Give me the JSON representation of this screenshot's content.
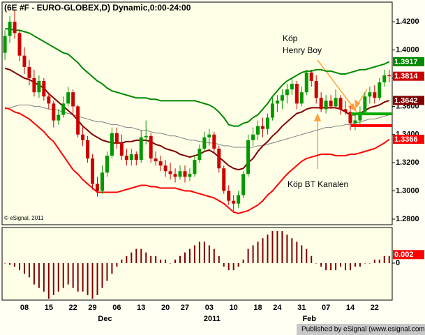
{
  "chart_data": [
    {
      "type": "candlestick",
      "title": "(6E #F - EURO-GLOBEX,D) Dynamic,0:00-24:00",
      "copyright": "© eSignal, 2011",
      "annotations": [
        "Köp",
        "Henry Boy",
        "Köp BT Kanalen"
      ],
      "ylim": [
        1.276,
        1.433
      ],
      "yticks": [
        {
          "value": 1.28,
          "label": "1.2800"
        },
        {
          "value": 1.3,
          "label": "1.3000"
        },
        {
          "value": 1.32,
          "label": "1.3200"
        },
        {
          "value": 1.34,
          "label": "1.3400"
        },
        {
          "value": 1.36,
          "label": "1.3600"
        },
        {
          "value": 1.38,
          "label": "1.3800"
        },
        {
          "value": 1.4,
          "label": "1.4000"
        },
        {
          "value": 1.42,
          "label": "1.4200"
        }
      ],
      "categories": [
        null,
        null,
        null,
        null,
        "08",
        null,
        null,
        null,
        null,
        "15",
        null,
        null,
        null,
        null,
        "22",
        null,
        null,
        null,
        "29",
        null,
        null,
        null,
        null,
        "06",
        null,
        null,
        null,
        null,
        "13",
        null,
        null,
        null,
        null,
        "20",
        null,
        null,
        null,
        "27",
        null,
        null,
        null,
        null,
        "03",
        null,
        null,
        null,
        null,
        "10",
        null,
        null,
        null,
        null,
        "18",
        null,
        null,
        null,
        "24",
        null,
        null,
        null,
        null,
        "31",
        null,
        null,
        null,
        null,
        "07",
        null,
        null,
        null,
        null,
        "14",
        null,
        null,
        null,
        null,
        "22",
        null,
        null,
        null
      ],
      "month_labels": [
        null,
        null,
        null,
        null,
        null,
        null,
        null,
        null,
        null,
        null,
        null,
        null,
        null,
        null,
        null,
        null,
        null,
        null,
        null,
        null,
        "Dec",
        null,
        null,
        null,
        null,
        null,
        null,
        null,
        null,
        null,
        null,
        null,
        null,
        null,
        null,
        null,
        null,
        null,
        null,
        null,
        null,
        null,
        "2011",
        null,
        null,
        null,
        null,
        null,
        null,
        null,
        null,
        null,
        null,
        null,
        null,
        null,
        null,
        null,
        null,
        null,
        null,
        null,
        "Feb",
        null,
        null,
        null,
        null,
        null,
        null,
        null,
        null,
        null,
        null,
        null,
        null,
        null,
        null,
        null,
        null,
        null
      ],
      "up_color": "#009900",
      "down_color": "#cc0000",
      "open": [
        1.398,
        1.41,
        1.42,
        1.412,
        1.396,
        1.388,
        1.38,
        1.37,
        1.378,
        1.367,
        1.362,
        1.35,
        1.354,
        1.362,
        1.37,
        1.36,
        1.34,
        1.336,
        1.323,
        1.305,
        1.3,
        1.313,
        1.325,
        1.341,
        1.334,
        1.325,
        1.322,
        1.326,
        1.322,
        1.338,
        1.339,
        1.323,
        1.321,
        1.318,
        1.314,
        1.312,
        1.31,
        1.314,
        1.31,
        1.312,
        1.322,
        1.33,
        1.338,
        1.34,
        1.33,
        1.316,
        1.3,
        1.293,
        1.291,
        1.297,
        1.312,
        1.336,
        1.34,
        1.346,
        1.344,
        1.352,
        1.362,
        1.364,
        1.368,
        1.372,
        1.376,
        1.362,
        1.37,
        1.384,
        1.378,
        1.366,
        1.358,
        1.364,
        1.36,
        1.366,
        1.358,
        1.356,
        1.348,
        1.35,
        1.356,
        1.367,
        1.37,
        1.366,
        1.377,
        1.382
      ],
      "high": [
        1.414,
        1.424,
        1.428,
        1.414,
        1.402,
        1.393,
        1.386,
        1.382,
        1.38,
        1.37,
        1.364,
        1.358,
        1.367,
        1.374,
        1.372,
        1.361,
        1.346,
        1.339,
        1.326,
        1.31,
        1.318,
        1.328,
        1.345,
        1.345,
        1.34,
        1.33,
        1.33,
        1.328,
        1.343,
        1.35,
        1.341,
        1.328,
        1.325,
        1.322,
        1.32,
        1.316,
        1.318,
        1.318,
        1.316,
        1.325,
        1.333,
        1.342,
        1.344,
        1.342,
        1.332,
        1.318,
        1.304,
        1.297,
        1.3,
        1.314,
        1.34,
        1.345,
        1.35,
        1.352,
        1.355,
        1.366,
        1.368,
        1.372,
        1.376,
        1.38,
        1.378,
        1.374,
        1.386,
        1.386,
        1.382,
        1.37,
        1.368,
        1.368,
        1.372,
        1.368,
        1.364,
        1.36,
        1.354,
        1.36,
        1.37,
        1.374,
        1.375,
        1.38,
        1.386,
        1.386
      ],
      "low": [
        1.393,
        1.405,
        1.408,
        1.392,
        1.383,
        1.375,
        1.367,
        1.366,
        1.364,
        1.358,
        1.345,
        1.347,
        1.352,
        1.36,
        1.355,
        1.338,
        1.332,
        1.32,
        1.301,
        1.296,
        1.298,
        1.31,
        1.323,
        1.33,
        1.322,
        1.318,
        1.318,
        1.318,
        1.32,
        1.333,
        1.32,
        1.318,
        1.314,
        1.31,
        1.308,
        1.306,
        1.308,
        1.306,
        1.307,
        1.31,
        1.32,
        1.328,
        1.332,
        1.326,
        1.313,
        1.298,
        1.29,
        1.286,
        1.288,
        1.295,
        1.31,
        1.332,
        1.336,
        1.338,
        1.34,
        1.35,
        1.356,
        1.358,
        1.362,
        1.368,
        1.358,
        1.36,
        1.368,
        1.374,
        1.362,
        1.356,
        1.355,
        1.358,
        1.358,
        1.354,
        1.354,
        1.343,
        1.343,
        1.347,
        1.354,
        1.362,
        1.362,
        1.364,
        1.374,
        1.377
      ],
      "close": [
        1.41,
        1.42,
        1.412,
        1.396,
        1.388,
        1.38,
        1.37,
        1.378,
        1.367,
        1.362,
        1.35,
        1.354,
        1.362,
        1.37,
        1.36,
        1.34,
        1.336,
        1.323,
        1.305,
        1.3,
        1.313,
        1.325,
        1.341,
        1.334,
        1.325,
        1.322,
        1.326,
        1.322,
        1.338,
        1.339,
        1.323,
        1.321,
        1.318,
        1.314,
        1.312,
        1.31,
        1.314,
        1.31,
        1.312,
        1.322,
        1.33,
        1.338,
        1.34,
        1.33,
        1.316,
        1.3,
        1.293,
        1.291,
        1.297,
        1.312,
        1.336,
        1.34,
        1.346,
        1.344,
        1.352,
        1.362,
        1.364,
        1.368,
        1.372,
        1.376,
        1.362,
        1.37,
        1.384,
        1.378,
        1.366,
        1.358,
        1.364,
        1.36,
        1.366,
        1.358,
        1.356,
        1.348,
        1.35,
        1.356,
        1.367,
        1.37,
        1.366,
        1.377,
        1.382,
        1.3814
      ],
      "series": [
        {
          "color": "#808080",
          "width": 1,
          "last_label": false,
          "values": [
            1.358,
            1.359,
            1.36,
            1.361,
            1.361,
            1.361,
            1.36,
            1.36,
            1.359,
            1.358,
            1.358,
            1.357,
            1.356,
            1.355,
            1.354,
            1.353,
            1.352,
            1.351,
            1.35,
            1.349,
            1.349,
            1.348,
            1.347,
            1.347,
            1.346,
            1.345,
            1.345,
            1.344,
            1.343,
            1.343,
            1.342,
            1.341,
            1.341,
            1.34,
            1.339,
            1.339,
            1.338,
            1.337,
            1.336,
            1.336,
            1.335,
            1.335,
            1.334,
            1.334,
            1.333,
            1.332,
            1.332,
            1.331,
            1.331,
            1.331,
            1.331,
            1.331,
            1.332,
            1.332,
            1.333,
            1.334,
            1.335,
            1.336,
            1.337,
            1.338,
            1.339,
            1.34,
            1.341,
            1.342,
            1.343,
            1.344,
            1.345,
            1.345,
            1.346,
            1.346,
            1.347,
            1.347,
            1.348,
            1.349,
            1.35,
            1.351,
            1.351,
            1.352,
            1.353,
            1.354
          ]
        },
        {
          "color": "#008800",
          "width": 2,
          "last_label": true,
          "values": [
            1.415,
            1.415,
            1.414,
            1.414,
            1.413,
            1.412,
            1.41,
            1.408,
            1.406,
            1.404,
            1.402,
            1.4,
            1.398,
            1.397,
            1.394,
            1.391,
            1.387,
            1.384,
            1.381,
            1.378,
            1.376,
            1.373,
            1.371,
            1.37,
            1.369,
            1.368,
            1.367,
            1.366,
            1.366,
            1.366,
            1.365,
            1.365,
            1.364,
            1.364,
            1.364,
            1.364,
            1.364,
            1.364,
            1.364,
            1.364,
            1.363,
            1.362,
            1.361,
            1.359,
            1.356,
            1.352,
            1.347,
            1.346,
            1.346,
            1.348,
            1.349,
            1.352,
            1.354,
            1.358,
            1.362,
            1.367,
            1.371,
            1.375,
            1.378,
            1.38,
            1.382,
            1.384,
            1.385,
            1.385,
            1.386,
            1.386,
            1.385,
            1.385,
            1.384,
            1.383,
            1.383,
            1.384,
            1.385,
            1.386,
            1.386,
            1.387,
            1.388,
            1.389,
            1.39,
            1.3917
          ]
        },
        {
          "color": "#800000",
          "width": 2,
          "last_label": true,
          "values": [
            1.387,
            1.386,
            1.384,
            1.382,
            1.38,
            1.379,
            1.377,
            1.375,
            1.373,
            1.369,
            1.366,
            1.363,
            1.36,
            1.357,
            1.354,
            1.35,
            1.346,
            1.343,
            1.34,
            1.338,
            1.336,
            1.335,
            1.334,
            1.334,
            1.334,
            1.335,
            1.335,
            1.336,
            1.336,
            1.336,
            1.335,
            1.333,
            1.332,
            1.33,
            1.329,
            1.328,
            1.326,
            1.325,
            1.324,
            1.325,
            1.326,
            1.328,
            1.329,
            1.327,
            1.324,
            1.321,
            1.318,
            1.316,
            1.315,
            1.316,
            1.32,
            1.323,
            1.328,
            1.332,
            1.335,
            1.339,
            1.342,
            1.346,
            1.349,
            1.352,
            1.355,
            1.356,
            1.358,
            1.359,
            1.359,
            1.359,
            1.359,
            1.359,
            1.359,
            1.358,
            1.356,
            1.354,
            1.354,
            1.355,
            1.357,
            1.359,
            1.36,
            1.361,
            1.363,
            1.3642
          ]
        },
        {
          "color": "#ff0000",
          "width": 2,
          "last_label": true,
          "values": [
            1.359,
            1.358,
            1.356,
            1.355,
            1.353,
            1.351,
            1.348,
            1.345,
            1.342,
            1.338,
            1.335,
            1.33,
            1.325,
            1.32,
            1.315,
            1.312,
            1.308,
            1.305,
            1.302,
            1.299,
            1.299,
            1.299,
            1.299,
            1.299,
            1.3,
            1.301,
            1.302,
            1.303,
            1.304,
            1.304,
            1.303,
            1.303,
            1.302,
            1.302,
            1.302,
            1.302,
            1.301,
            1.3,
            1.3,
            1.299,
            1.298,
            1.297,
            1.296,
            1.295,
            1.293,
            1.291,
            1.288,
            1.285,
            1.284,
            1.285,
            1.286,
            1.288,
            1.29,
            1.293,
            1.297,
            1.3,
            1.304,
            1.308,
            1.312,
            1.315,
            1.318,
            1.321,
            1.323,
            1.324,
            1.325,
            1.326,
            1.326,
            1.326,
            1.325,
            1.325,
            1.325,
            1.326,
            1.326,
            1.327,
            1.328,
            1.329,
            1.33,
            1.332,
            1.334,
            1.3366
          ]
        }
      ],
      "levels": [
        {
          "value": 1.3547,
          "color": "#00aa00"
        },
        {
          "value": 1.3463,
          "color": "#ff0000"
        }
      ]
    },
    {
      "type": "bar",
      "color": "#800000",
      "label_color": "#ff0000",
      "ylim": [
        -0.0104,
        0.01
      ],
      "yticks": [
        0
      ],
      "footer": "Published by eSignal (www.esignal.com)",
      "values": [
        0,
        -0.0005,
        -0.001,
        -0.002,
        -0.003,
        -0.004,
        -0.006,
        -0.007,
        -0.008,
        -0.01,
        -0.009,
        -0.008,
        -0.007,
        -0.006,
        -0.007,
        -0.008,
        -0.008,
        -0.009,
        -0.01,
        -0.009,
        -0.007,
        -0.005,
        -0.003,
        -0.001,
        0.001,
        0.002,
        0.003,
        0.004,
        0.004,
        0.003,
        0.002,
        0.002,
        0.001,
        0.001,
        0,
        0.001,
        0.002,
        0.003,
        0.004,
        0.005,
        0.006,
        0.006,
        0.005,
        0.004,
        0.002,
        -0.001,
        -0.002,
        -0.002,
        -0.001,
        0.001,
        0.004,
        0.005,
        0.006,
        0.007,
        0.008,
        0.009,
        0.009,
        0.009,
        0.008,
        0.007,
        0.006,
        0.005,
        0.004,
        0.002,
        0,
        -0.001,
        -0.002,
        -0.002,
        -0.002,
        -0.001,
        -0.002,
        -0.002,
        -0.001,
        -0.001,
        0,
        0,
        0.001,
        0.001,
        0.002,
        0.002
      ]
    }
  ]
}
